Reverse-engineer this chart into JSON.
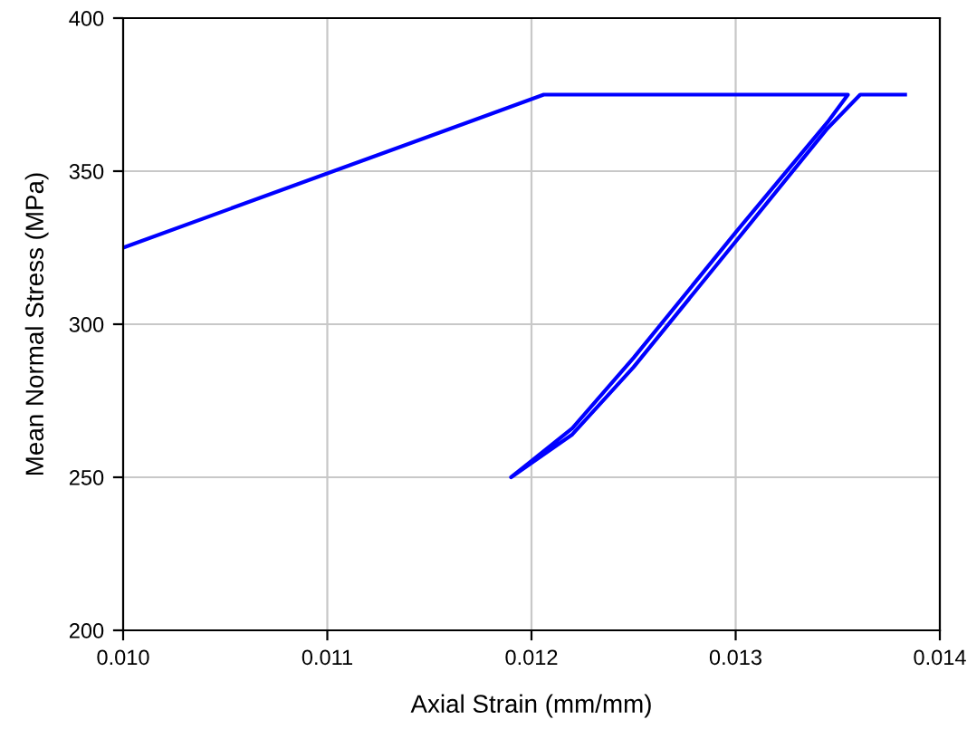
{
  "chart_data": {
    "type": "line",
    "xlabel": "Axial Strain (mm/mm)",
    "ylabel": "Mean Normal Stress (MPa)",
    "series": [
      {
        "color": "#0000ff",
        "x": [
          0.01,
          0.01206,
          0.01355,
          0.01345,
          0.013,
          0.0125,
          0.0122,
          0.0119,
          0.0122,
          0.0125,
          0.013,
          0.01345,
          0.01361,
          0.01383
        ],
        "values": [
          325,
          375,
          375,
          366,
          330,
          289,
          266,
          250,
          264,
          286,
          327,
          364,
          375,
          375
        ]
      }
    ],
    "xlim": [
      0.01,
      0.014
    ],
    "xticks": [
      {
        "value": 0.01,
        "label": "0.010"
      },
      0.011,
      0.012,
      0.013,
      0.014
    ],
    "ylim": [
      200,
      400
    ],
    "yticks": [
      200,
      250,
      300,
      350,
      400
    ],
    "grid": true,
    "marker": "none",
    "line_style": "solid"
  }
}
